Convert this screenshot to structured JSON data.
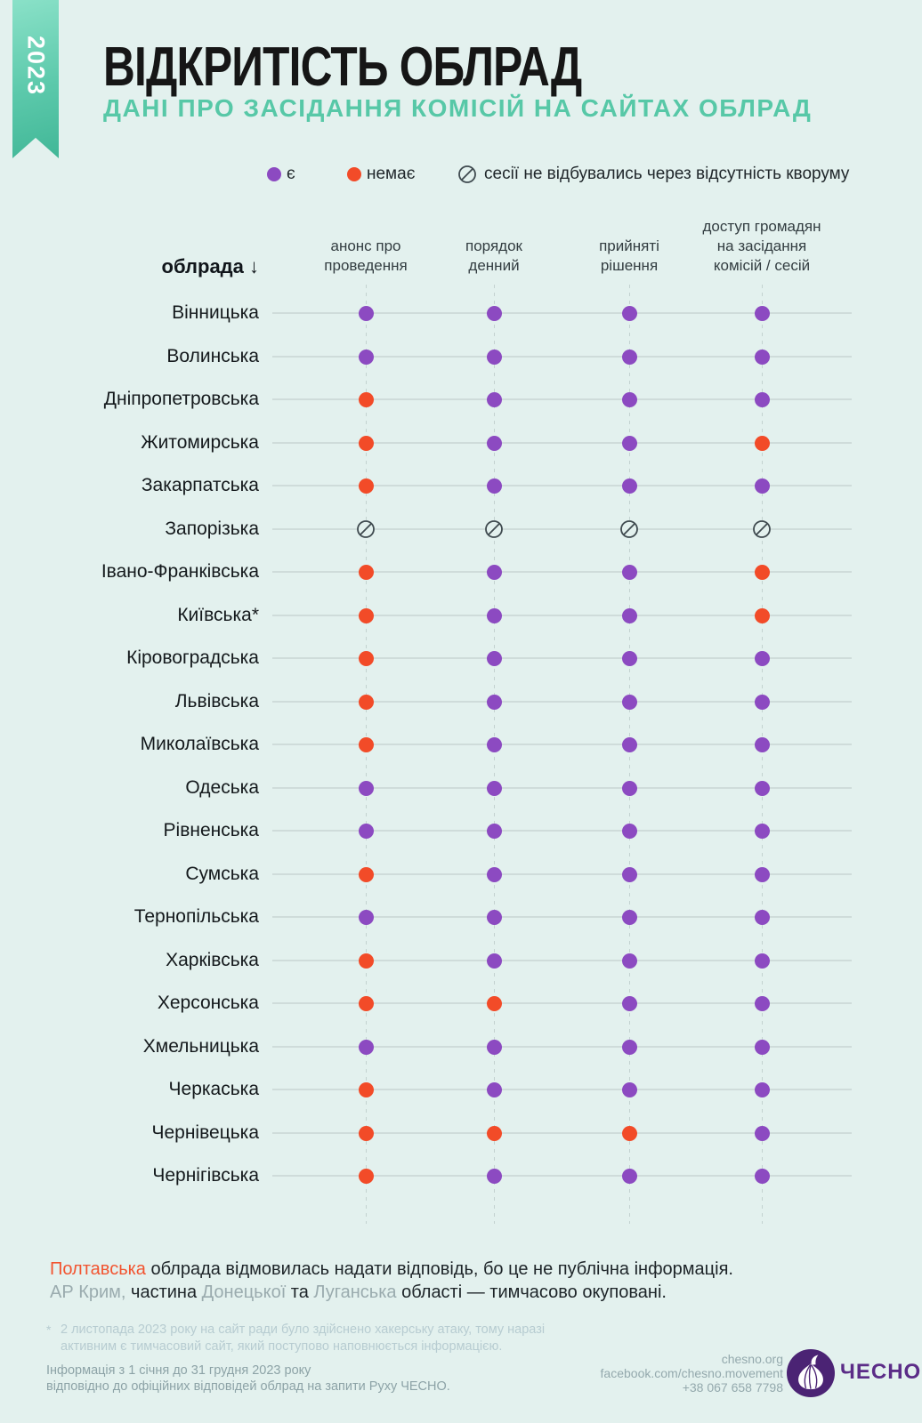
{
  "ribbon": {
    "year": "2023"
  },
  "header": {
    "title": "ВІДКРИТІСТЬ ОБЛРАД",
    "subtitle": "ДАНІ ПРО ЗАСІДАННЯ КОМІСІЙ НА САЙТАХ ОБЛРАД"
  },
  "legend": {
    "present": "є",
    "absent": "немає",
    "no_quorum": "сесії не відбувались через відсутність кворуму"
  },
  "table_header": {
    "row_header": "облрада ↓"
  },
  "chart_data": {
    "type": "table",
    "title": "ВІДКРИТІСТЬ ОБЛРАД",
    "subtitle": "ДАНІ ПРО ЗАСІДАННЯ КОМІСІЙ НА САЙТАХ ОБЛРАД",
    "value_legend": {
      "yes": "є",
      "no": "немає",
      "none": "сесії не відбувались через відсутність кворуму"
    },
    "columns": [
      "анонс про\nпроведення",
      "порядок\nденний",
      "прийняті\nрішення",
      "доступ громадян\nна засідання\nкомісій / сесій"
    ],
    "rows": [
      {
        "name": "Вінницька",
        "values": [
          "yes",
          "yes",
          "yes",
          "yes"
        ]
      },
      {
        "name": "Волинська",
        "values": [
          "yes",
          "yes",
          "yes",
          "yes"
        ]
      },
      {
        "name": "Дніпропетровська",
        "values": [
          "no",
          "yes",
          "yes",
          "yes"
        ]
      },
      {
        "name": "Житомирська",
        "values": [
          "no",
          "yes",
          "yes",
          "no"
        ]
      },
      {
        "name": "Закарпатська",
        "values": [
          "no",
          "yes",
          "yes",
          "yes"
        ]
      },
      {
        "name": "Запорізька",
        "values": [
          "none",
          "none",
          "none",
          "none"
        ]
      },
      {
        "name": "Івано-Франківська",
        "values": [
          "no",
          "yes",
          "yes",
          "no"
        ]
      },
      {
        "name": "Київська*",
        "values": [
          "no",
          "yes",
          "yes",
          "no"
        ]
      },
      {
        "name": "Кіровоградська",
        "values": [
          "no",
          "yes",
          "yes",
          "yes"
        ]
      },
      {
        "name": "Львівська",
        "values": [
          "no",
          "yes",
          "yes",
          "yes"
        ]
      },
      {
        "name": "Миколаївська",
        "values": [
          "no",
          "yes",
          "yes",
          "yes"
        ]
      },
      {
        "name": "Одеська",
        "values": [
          "yes",
          "yes",
          "yes",
          "yes"
        ]
      },
      {
        "name": "Рівненська",
        "values": [
          "yes",
          "yes",
          "yes",
          "yes"
        ]
      },
      {
        "name": "Сумська",
        "values": [
          "no",
          "yes",
          "yes",
          "yes"
        ]
      },
      {
        "name": "Тернопільська",
        "values": [
          "yes",
          "yes",
          "yes",
          "yes"
        ]
      },
      {
        "name": "Харківська",
        "values": [
          "no",
          "yes",
          "yes",
          "yes"
        ]
      },
      {
        "name": "Херсонська",
        "values": [
          "no",
          "no",
          "yes",
          "yes"
        ]
      },
      {
        "name": "Хмельницька",
        "values": [
          "yes",
          "yes",
          "yes",
          "yes"
        ]
      },
      {
        "name": "Черкаська",
        "values": [
          "no",
          "yes",
          "yes",
          "yes"
        ]
      },
      {
        "name": "Чернівецька",
        "values": [
          "no",
          "no",
          "no",
          "yes"
        ]
      },
      {
        "name": "Чернігівська",
        "values": [
          "no",
          "yes",
          "yes",
          "yes"
        ]
      }
    ]
  },
  "notes": {
    "line1": [
      {
        "text": "Полтавська",
        "style": "orange"
      },
      {
        "text": " облрада відмовилась надати відповідь, бо це не публічна інформація.",
        "style": "dark"
      }
    ],
    "line2": [
      {
        "text": "АР Крим,",
        "style": "muted"
      },
      {
        "text": " частина ",
        "style": "dark"
      },
      {
        "text": "Донецької",
        "style": "muted"
      },
      {
        "text": " та ",
        "style": "dark"
      },
      {
        "text": "Луганська",
        "style": "muted"
      },
      {
        "text": " області — тимчасово окуповані.",
        "style": "dark"
      }
    ]
  },
  "footnote": {
    "marker": "*",
    "text": "2 листопада 2023 року на сайт ради було здійснено хакерську атаку, тому наразі\nактивним є тимчасовий сайт, який поступово наповнюється інформацією."
  },
  "footer": {
    "left_lines": [
      "Інформація з 1 січня до 31 грудня 2023 року",
      "відповідно до офіційних відповідей облрад на запити Руху ЧЕСНО."
    ],
    "contact_lines": [
      "chesno.org",
      "facebook.com/chesno.movement",
      "+38 067 658 7798"
    ],
    "brand": "ЧЕСНО"
  },
  "colors": {
    "background": "#e3f1ee",
    "accent_teal": "#57c8a7",
    "purple": "#8c4ac1",
    "orange": "#f24b28",
    "no_quorum_stroke": "#3f4a4f",
    "logo_purple": "#4b2374"
  }
}
